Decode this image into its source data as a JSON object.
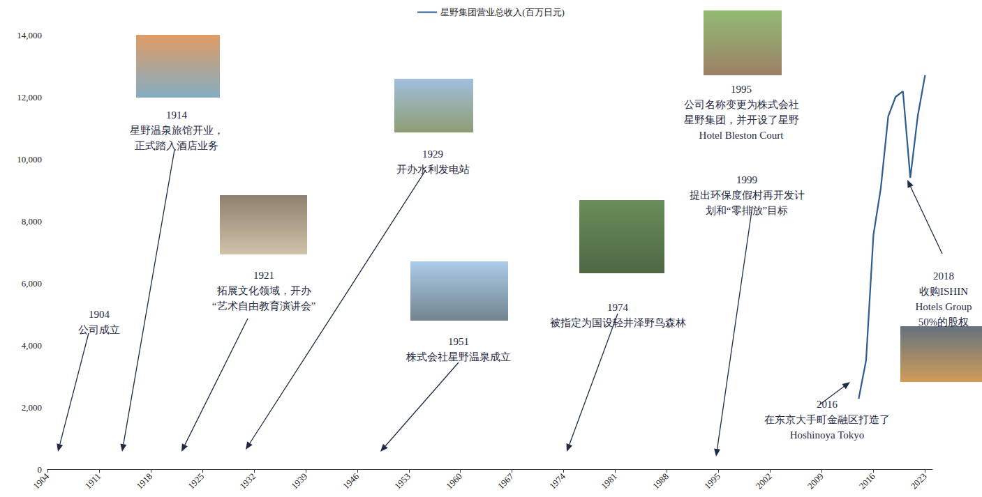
{
  "chart_data": {
    "type": "line",
    "series": [
      {
        "name": "星野集团营业总收入(百万日元)",
        "color": "#2f5b8f",
        "x": [
          2014,
          2015,
          2016,
          2017,
          2018,
          2019,
          2020,
          2021,
          2022,
          2023
        ],
        "values": [
          2270,
          3500,
          7550,
          9060,
          11370,
          12000,
          12180,
          9390,
          11370,
          12700
        ]
      }
    ],
    "xlim": [
      1904,
      2024
    ],
    "xticks": [
      1904,
      1911,
      1918,
      1925,
      1932,
      1939,
      1946,
      1953,
      1960,
      1967,
      1974,
      1981,
      1988,
      1995,
      2002,
      2009,
      2016,
      2023
    ],
    "ylim": [
      0,
      14000
    ],
    "yticks": [
      0,
      {
        "value": 2000,
        "label": "2,000"
      },
      {
        "value": 4000,
        "label": "4,000"
      },
      {
        "value": 6000,
        "label": "6,000"
      },
      {
        "value": 8000,
        "label": "8,000"
      },
      {
        "value": 10000,
        "label": "10,000"
      },
      {
        "value": 12000,
        "label": "12,000"
      },
      {
        "value": 14000,
        "label": "14,000"
      }
    ],
    "grid": false,
    "legend": "top",
    "annotations": [
      {
        "year": "1904",
        "lines": [
          "公司成立"
        ]
      },
      {
        "year": "1914",
        "lines": [
          "星野温泉旅馆开业，",
          "正式踏入酒店业务"
        ]
      },
      {
        "year": "1921",
        "lines": [
          "拓展文化领域，开办",
          "“艺术自由教育演讲会”"
        ]
      },
      {
        "year": "1929",
        "lines": [
          "开办水利发电站"
        ]
      },
      {
        "year": "1951",
        "lines": [
          "株式会社星野温泉成立"
        ]
      },
      {
        "year": "1974",
        "lines": [
          "被指定为国设轻井泽野鸟森林"
        ]
      },
      {
        "year": "1995",
        "lines": [
          "公司名称变更为株式会社",
          "星野集团，并开设了星野",
          "Hotel Bleston Court"
        ]
      },
      {
        "year": "1999",
        "lines": [
          "提出环保度假村再开发计",
          "划和“零排放”目标"
        ]
      },
      {
        "year": "2016",
        "lines": [
          "在东京大手町金融区打造了",
          "Hoshinoya Tokyo"
        ]
      },
      {
        "year": "2018",
        "lines": [
          "收购ISHIN",
          "Hotels Group",
          "50%的股权"
        ]
      }
    ]
  }
}
